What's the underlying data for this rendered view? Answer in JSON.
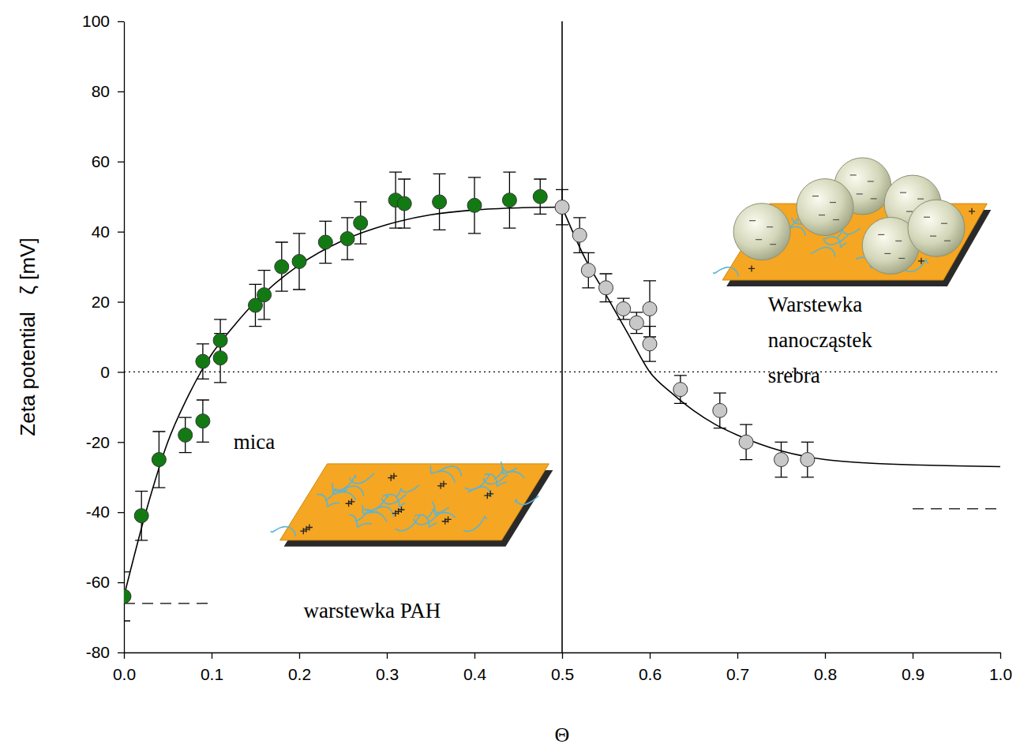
{
  "chart_data": {
    "type": "scatter",
    "x_label": "Θ",
    "y_label": "Zeta potential   ζ [mV]",
    "xlim": [
      0,
      1
    ],
    "ylim": [
      -80,
      100
    ],
    "xticks": [
      {
        "value": 0,
        "label": "0.0"
      },
      0.1,
      0.2,
      0.3,
      0.4,
      0.5,
      0.6,
      0.7,
      0.8,
      0.9,
      {
        "value": 1,
        "label": "1.0"
      }
    ],
    "yticks": [
      -80,
      -60,
      -40,
      -20,
      0,
      20,
      40,
      60,
      80,
      100
    ],
    "grid": false,
    "series": [
      {
        "type": "line",
        "color": "#000000",
        "line_style": "solid",
        "x": [
          0.5,
          0.5
        ],
        "values": [
          -80,
          100
        ]
      },
      {
        "type": "line",
        "color": "#000000",
        "line_style": "dotted",
        "x": [
          0,
          1
        ],
        "values": [
          0,
          0
        ]
      },
      {
        "type": "line",
        "color": "#000000",
        "line_style": "dashed",
        "x": [
          0,
          0.1
        ],
        "values": [
          -66,
          -66
        ]
      },
      {
        "type": "line",
        "color": "#000000",
        "line_style": "dashed",
        "x": [
          0.9,
          1
        ],
        "values": [
          -39,
          -39
        ]
      },
      {
        "type": "line",
        "color": "#000000",
        "line_style": "solid",
        "x": [
          0,
          0.025,
          0.05,
          0.075,
          0.1,
          0.125,
          0.15,
          0.2,
          0.25,
          0.3,
          0.35,
          0.4,
          0.45,
          0.5
        ],
        "values": [
          -64,
          -40,
          -20,
          -6,
          5,
          13,
          20,
          30.5,
          37.5,
          42,
          44.8,
          46.2,
          46.8,
          47
        ]
      },
      {
        "type": "line",
        "color": "#000000",
        "line_style": "solid",
        "x": [
          0.5,
          0.525,
          0.55,
          0.575,
          0.6,
          0.625,
          0.65,
          0.675,
          0.7,
          0.75,
          0.8,
          0.85,
          0.9,
          0.95,
          1
        ],
        "values": [
          47,
          33,
          22,
          11,
          0,
          -6,
          -11,
          -15,
          -18,
          -22.5,
          -25,
          -26,
          -26.5,
          -26.8,
          -27
        ]
      },
      {
        "type": "scatter",
        "color": "#137a13",
        "marker": "circle",
        "x": [
          0,
          0.02,
          0.04,
          0.07,
          0.09,
          0.09,
          0.11,
          0.11,
          0.15,
          0.16,
          0.18,
          0.2,
          0.23,
          0.255,
          0.27,
          0.31,
          0.32,
          0.36,
          0.4,
          0.44,
          0.475
        ],
        "values": [
          -64,
          -41,
          -25,
          -18,
          3,
          -14,
          9,
          4,
          19,
          22,
          30,
          31.5,
          37,
          38,
          42.5,
          49,
          48,
          48.5,
          47.5,
          49,
          50
        ],
        "errors": [
          7,
          7,
          8,
          5,
          5,
          6,
          6,
          7,
          6,
          7,
          7,
          8,
          6,
          6,
          6,
          8,
          7,
          8,
          8,
          8,
          5
        ]
      },
      {
        "type": "scatter",
        "color": "#c8c8c8",
        "marker": "circle",
        "x": [
          0.5,
          0.52,
          0.53,
          0.55,
          0.57,
          0.585,
          0.6,
          0.6,
          0.635,
          0.68,
          0.71,
          0.75,
          0.78
        ],
        "values": [
          47,
          39,
          29,
          24,
          18,
          14,
          18,
          8,
          -5,
          -11,
          -20,
          -25,
          -25
        ],
        "errors": [
          5,
          5,
          5,
          4,
          3,
          3,
          8,
          5,
          4,
          5,
          5,
          5,
          5
        ]
      }
    ],
    "annotations": [
      {
        "text": [
          "mica"
        ]
      },
      {
        "text": [
          "warstewka PAH"
        ]
      },
      {
        "text": [
          "Warstewka",
          "nanocząstek",
          "srebra"
        ]
      }
    ]
  }
}
